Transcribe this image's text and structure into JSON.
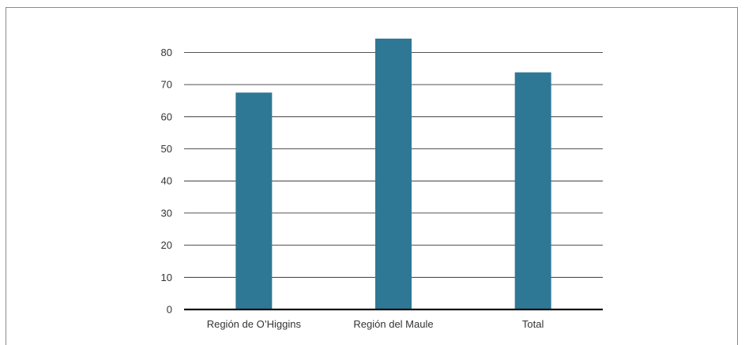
{
  "chart_data": {
    "type": "bar",
    "categories": [
      "Región de O’Higgins",
      "Región del Maule",
      "Total"
    ],
    "values": [
      67.5,
      84.3,
      73.8
    ],
    "title": "",
    "xlabel": "",
    "ylabel": "",
    "ylim": [
      0,
      80
    ],
    "yticks": [
      0,
      10,
      20,
      30,
      40,
      50,
      60,
      70,
      80
    ],
    "grid": true,
    "legend": "none",
    "colors": {
      "bar": "#2e7896",
      "grid": "#1a1a1a",
      "axis": "#111111"
    }
  }
}
